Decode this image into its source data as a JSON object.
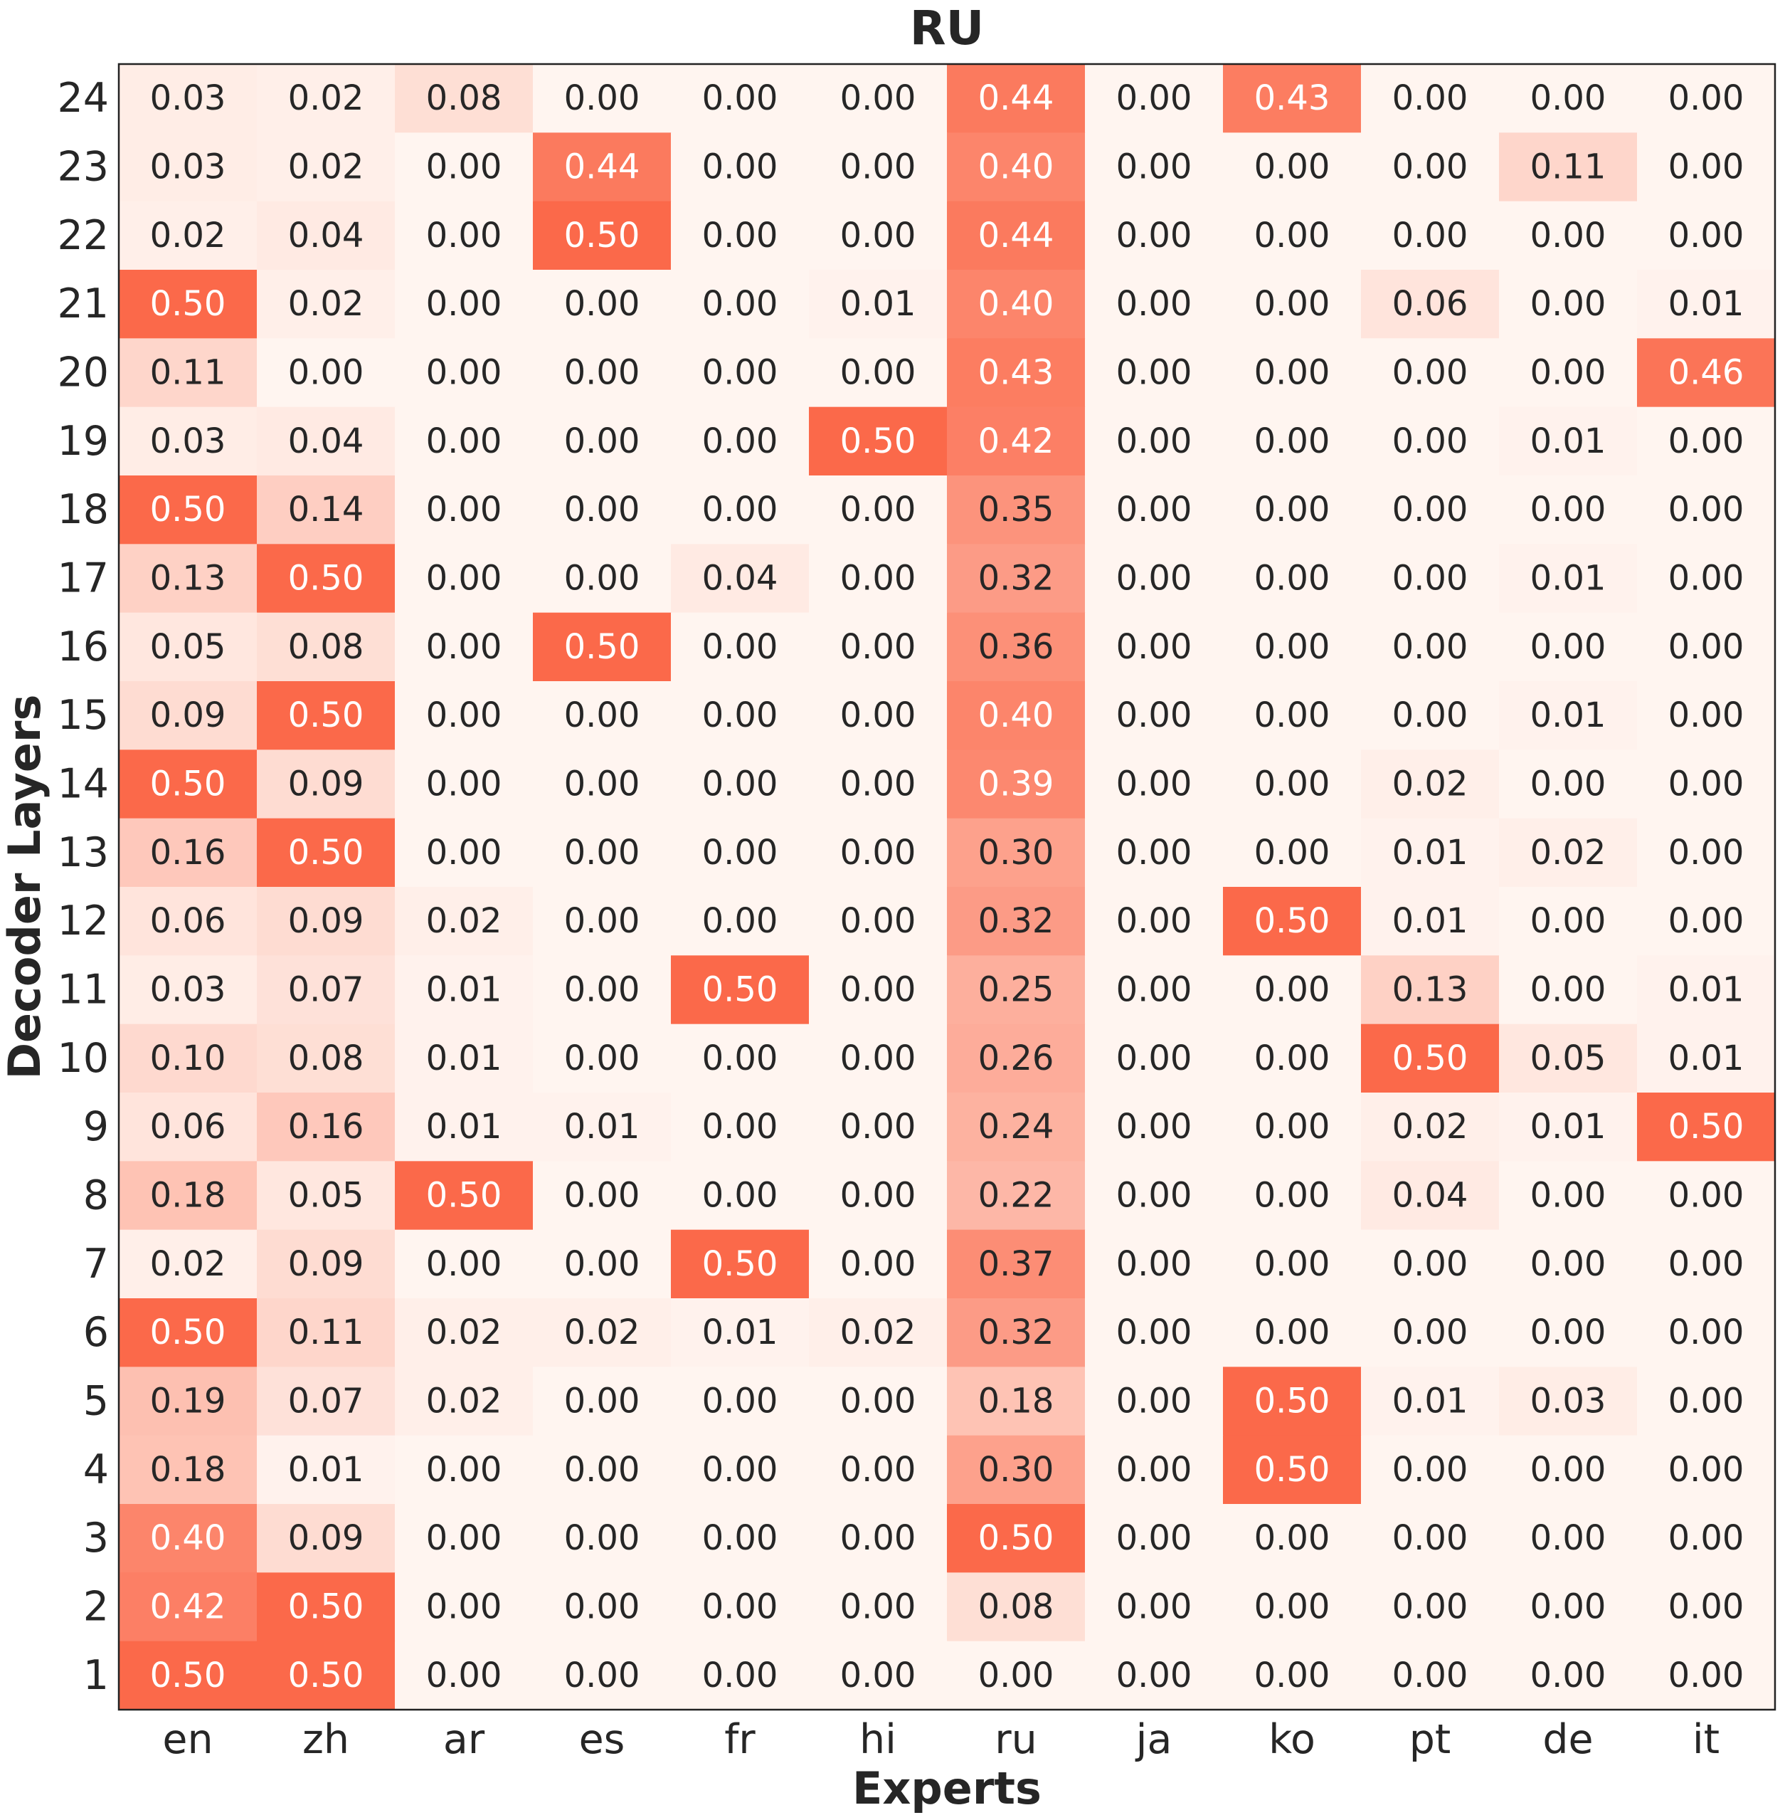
{
  "chart_data": {
    "type": "heatmap",
    "title": "RU",
    "xlabel": "Experts",
    "ylabel": "Decoder Layers",
    "x_categories": [
      "en",
      "zh",
      "ar",
      "es",
      "fr",
      "hi",
      "ru",
      "ja",
      "ko",
      "pt",
      "de",
      "it"
    ],
    "y_categories": [
      "24",
      "23",
      "22",
      "21",
      "20",
      "19",
      "18",
      "17",
      "16",
      "15",
      "14",
      "13",
      "12",
      "11",
      "10",
      "9",
      "8",
      "7",
      "6",
      "5",
      "4",
      "3",
      "2",
      "1"
    ],
    "values": [
      [
        0.03,
        0.02,
        0.08,
        0.0,
        0.0,
        0.0,
        0.44,
        0.0,
        0.43,
        0.0,
        0.0,
        0.0
      ],
      [
        0.03,
        0.02,
        0.0,
        0.44,
        0.0,
        0.0,
        0.4,
        0.0,
        0.0,
        0.0,
        0.11,
        0.0
      ],
      [
        0.02,
        0.04,
        0.0,
        0.5,
        0.0,
        0.0,
        0.44,
        0.0,
        0.0,
        0.0,
        0.0,
        0.0
      ],
      [
        0.5,
        0.02,
        0.0,
        0.0,
        0.0,
        0.01,
        0.4,
        0.0,
        0.0,
        0.06,
        0.0,
        0.01
      ],
      [
        0.11,
        0.0,
        0.0,
        0.0,
        0.0,
        0.0,
        0.43,
        0.0,
        0.0,
        0.0,
        0.0,
        0.46
      ],
      [
        0.03,
        0.04,
        0.0,
        0.0,
        0.0,
        0.5,
        0.42,
        0.0,
        0.0,
        0.0,
        0.01,
        0.0
      ],
      [
        0.5,
        0.14,
        0.0,
        0.0,
        0.0,
        0.0,
        0.35,
        0.0,
        0.0,
        0.0,
        0.0,
        0.0
      ],
      [
        0.13,
        0.5,
        0.0,
        0.0,
        0.04,
        0.0,
        0.32,
        0.0,
        0.0,
        0.0,
        0.01,
        0.0
      ],
      [
        0.05,
        0.08,
        0.0,
        0.5,
        0.0,
        0.0,
        0.36,
        0.0,
        0.0,
        0.0,
        0.0,
        0.0
      ],
      [
        0.09,
        0.5,
        0.0,
        0.0,
        0.0,
        0.0,
        0.4,
        0.0,
        0.0,
        0.0,
        0.01,
        0.0
      ],
      [
        0.5,
        0.09,
        0.0,
        0.0,
        0.0,
        0.0,
        0.39,
        0.0,
        0.0,
        0.02,
        0.0,
        0.0
      ],
      [
        0.16,
        0.5,
        0.0,
        0.0,
        0.0,
        0.0,
        0.3,
        0.0,
        0.0,
        0.01,
        0.02,
        0.0
      ],
      [
        0.06,
        0.09,
        0.02,
        0.0,
        0.0,
        0.0,
        0.32,
        0.0,
        0.5,
        0.01,
        0.0,
        0.0
      ],
      [
        0.03,
        0.07,
        0.01,
        0.0,
        0.5,
        0.0,
        0.25,
        0.0,
        0.0,
        0.13,
        0.0,
        0.01
      ],
      [
        0.1,
        0.08,
        0.01,
        0.0,
        0.0,
        0.0,
        0.26,
        0.0,
        0.0,
        0.5,
        0.05,
        0.01
      ],
      [
        0.06,
        0.16,
        0.01,
        0.01,
        0.0,
        0.0,
        0.24,
        0.0,
        0.0,
        0.02,
        0.01,
        0.5
      ],
      [
        0.18,
        0.05,
        0.5,
        0.0,
        0.0,
        0.0,
        0.22,
        0.0,
        0.0,
        0.04,
        0.0,
        0.0
      ],
      [
        0.02,
        0.09,
        0.0,
        0.0,
        0.5,
        0.0,
        0.37,
        0.0,
        0.0,
        0.0,
        0.0,
        0.0
      ],
      [
        0.5,
        0.11,
        0.02,
        0.02,
        0.01,
        0.02,
        0.32,
        0.0,
        0.0,
        0.0,
        0.0,
        0.0
      ],
      [
        0.19,
        0.07,
        0.02,
        0.0,
        0.0,
        0.0,
        0.18,
        0.0,
        0.5,
        0.01,
        0.03,
        0.0
      ],
      [
        0.18,
        0.01,
        0.0,
        0.0,
        0.0,
        0.0,
        0.3,
        0.0,
        0.5,
        0.0,
        0.0,
        0.0
      ],
      [
        0.4,
        0.09,
        0.0,
        0.0,
        0.0,
        0.0,
        0.5,
        0.0,
        0.0,
        0.0,
        0.0,
        0.0
      ],
      [
        0.42,
        0.5,
        0.0,
        0.0,
        0.0,
        0.0,
        0.08,
        0.0,
        0.0,
        0.0,
        0.0,
        0.0
      ],
      [
        0.5,
        0.5,
        0.0,
        0.0,
        0.0,
        0.0,
        0.0,
        0.0,
        0.0,
        0.0,
        0.0,
        0.0
      ]
    ],
    "value_range": [
      0,
      0.5
    ],
    "colormap": {
      "low": "#fff5f0",
      "high": "#fb694a"
    },
    "text_colors": {
      "dark": "#262626",
      "light": "#ffffff"
    },
    "grid": false,
    "legend": "none"
  }
}
